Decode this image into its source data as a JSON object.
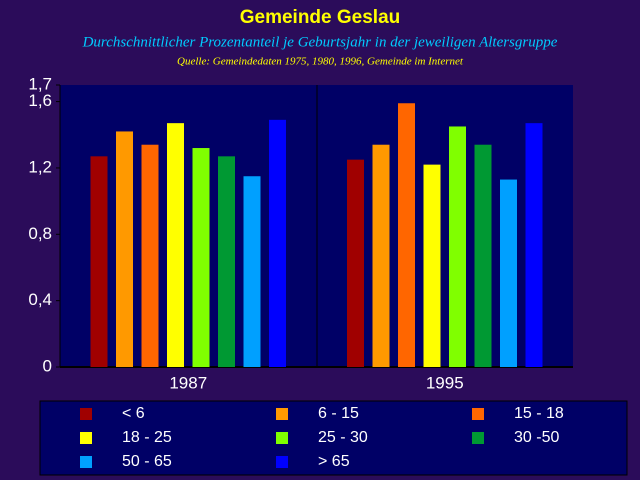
{
  "chart_data": {
    "type": "bar",
    "title": "Gemeinde Geslau",
    "subtitle": "Durchschnittlicher Prozentanteil je Geburtsjahr in der jeweiligen Altersgruppe",
    "source": "Quelle: Gemeindedaten 1975, 1980, 1996, Gemeinde im Internet",
    "categories": [
      "1987",
      "1995"
    ],
    "series": [
      {
        "name": "< 6",
        "color": "#a00000",
        "values": [
          1.27,
          1.25
        ]
      },
      {
        "name": "6 - 15",
        "color": "#ff9900",
        "values": [
          1.42,
          1.34
        ]
      },
      {
        "name": "15 - 18",
        "color": "#ff6600",
        "values": [
          1.34,
          1.59
        ]
      },
      {
        "name": "18 - 25",
        "color": "#ffff00",
        "values": [
          1.47,
          1.22
        ]
      },
      {
        "name": "25 - 30",
        "color": "#80ff00",
        "values": [
          1.32,
          1.45
        ]
      },
      {
        "name": "30 -50",
        "color": "#009933",
        "values": [
          1.27,
          1.34
        ]
      },
      {
        "name": "50 - 65",
        "color": "#00a0ff",
        "values": [
          1.15,
          1.13
        ]
      },
      {
        "name": "> 65",
        "color": "#0000ff",
        "values": [
          1.49,
          1.47
        ]
      }
    ],
    "ylim": [
      0,
      1.7
    ],
    "yticks": [
      0,
      {
        "value": 0.4,
        "label": "0,4"
      },
      {
        "value": 0.8,
        "label": "0,8"
      },
      {
        "value": 1.2,
        "label": "1,2"
      },
      {
        "value": 1.6,
        "label": "1,6"
      },
      {
        "value": 1.7,
        "label": "1,7"
      }
    ]
  }
}
